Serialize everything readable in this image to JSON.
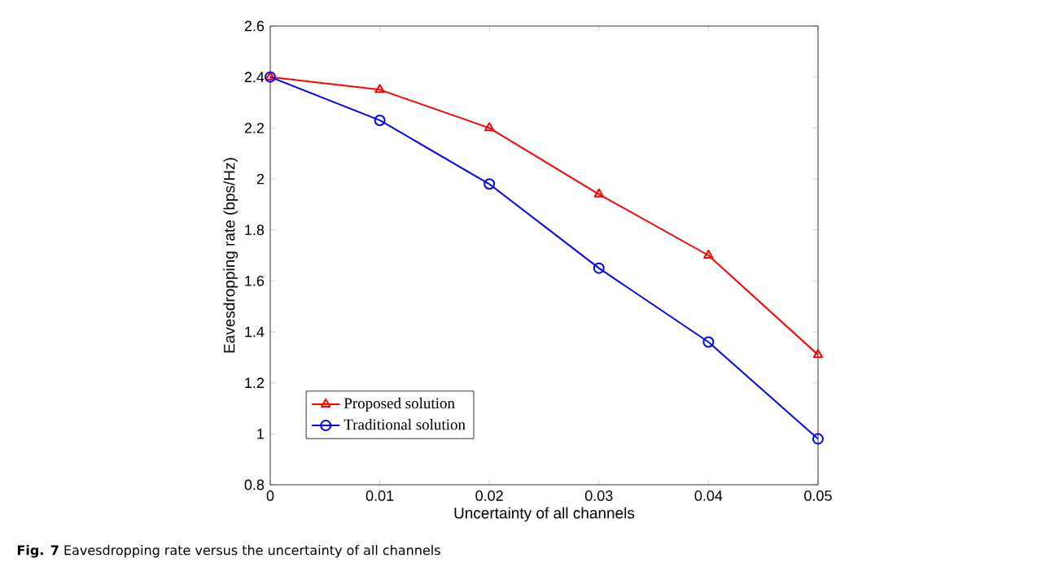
{
  "chart_data": {
    "type": "line",
    "xlabel": "Uncertainty of all channels",
    "ylabel": "Eavesdropping rate (bps/Hz)",
    "annotations": [
      "**Fig. 7** Eavesdropping rate versus the uncertainty of all channels"
    ],
    "x": [
      0,
      0.01,
      0.02,
      0.03,
      0.04,
      0.05
    ],
    "series": [
      {
        "name": "Proposed solution",
        "color": "#ff0000",
        "marker": "triangle",
        "values": [
          2.4,
          2.35,
          2.2,
          1.94,
          1.7,
          1.31
        ]
      },
      {
        "name": "Traditional solution",
        "color": "#0000ff",
        "marker": "circle",
        "values": [
          2.4,
          2.23,
          1.98,
          1.65,
          1.36,
          0.98
        ]
      }
    ],
    "xlim": [
      0,
      0.05
    ],
    "ylim": [
      0.8,
      2.6
    ],
    "xticks": [
      0,
      0.01,
      0.02,
      0.03,
      0.04,
      0.05
    ],
    "yticks": [
      0.8,
      1,
      1.2,
      1.4,
      1.6,
      1.8,
      2,
      2.2,
      2.4,
      2.6
    ],
    "legend": "bottom left",
    "line_style": "solid"
  }
}
